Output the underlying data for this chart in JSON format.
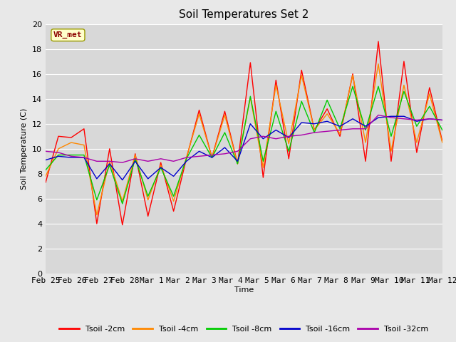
{
  "title": "Soil Temperatures Set 2",
  "xlabel": "Time",
  "ylabel": "Soil Temperature (C)",
  "ylim": [
    0,
    20
  ],
  "fig_bg_color": "#e8e8e8",
  "plot_bg_color": "#d8d8d8",
  "annotation_label": "VR_met",
  "annotation_color": "#8b0000",
  "annotation_bg": "#ffffcc",
  "annotation_edge": "#999900",
  "series_colors": {
    "Tsoil -2cm": "#ff0000",
    "Tsoil -4cm": "#ff8800",
    "Tsoil -8cm": "#00cc00",
    "Tsoil -16cm": "#0000cc",
    "Tsoil -32cm": "#aa00aa"
  },
  "x_tick_labels": [
    "Feb 25",
    "Feb 26",
    "Feb 27",
    "Feb 28",
    "Mar 1",
    "Mar 2",
    "Mar 3",
    "Mar 4",
    "Mar 5",
    "Mar 6",
    "Mar 7",
    "Mar 8",
    "Mar 9",
    "Mar 10",
    "Mar 11",
    "Mar 12"
  ],
  "tsoil_2cm": [
    7.3,
    11.0,
    10.9,
    11.6,
    4.0,
    10.0,
    3.9,
    9.6,
    4.6,
    8.9,
    5.0,
    9.2,
    13.1,
    9.3,
    13.0,
    8.8,
    16.9,
    7.7,
    15.5,
    9.2,
    16.3,
    11.5,
    13.2,
    11.0,
    16.0,
    9.0,
    18.6,
    9.0,
    17.0,
    9.7,
    14.9,
    10.6
  ],
  "tsoil_4cm": [
    7.8,
    10.0,
    10.5,
    10.3,
    4.7,
    9.0,
    5.8,
    9.5,
    5.9,
    8.7,
    5.8,
    9.3,
    12.8,
    9.3,
    12.7,
    8.8,
    14.1,
    8.5,
    15.1,
    10.4,
    15.9,
    11.5,
    12.8,
    11.2,
    15.9,
    10.5,
    16.8,
    9.8,
    15.1,
    10.5,
    14.4,
    10.5
  ],
  "tsoil_8cm": [
    8.3,
    9.5,
    9.5,
    9.5,
    5.9,
    8.7,
    5.6,
    9.2,
    6.2,
    8.5,
    6.2,
    9.2,
    11.1,
    9.3,
    11.3,
    8.8,
    14.2,
    9.0,
    13.0,
    9.8,
    13.8,
    11.3,
    13.9,
    11.6,
    15.0,
    11.5,
    15.0,
    11.0,
    14.6,
    11.8,
    13.4,
    11.5
  ],
  "tsoil_16cm": [
    9.1,
    9.4,
    9.3,
    9.3,
    7.6,
    8.8,
    7.5,
    9.0,
    7.6,
    8.5,
    7.8,
    9.0,
    9.8,
    9.3,
    10.1,
    9.0,
    12.0,
    10.8,
    11.5,
    10.9,
    12.1,
    12.0,
    12.2,
    11.8,
    12.4,
    11.8,
    12.5,
    12.6,
    12.6,
    12.2,
    12.4,
    12.3
  ],
  "tsoil_32cm": [
    9.8,
    9.7,
    9.4,
    9.3,
    9.0,
    9.0,
    8.9,
    9.2,
    9.0,
    9.2,
    9.0,
    9.3,
    9.4,
    9.5,
    9.6,
    9.8,
    10.8,
    11.0,
    10.8,
    11.0,
    11.1,
    11.3,
    11.4,
    11.5,
    11.6,
    11.6,
    12.7,
    12.5,
    12.4,
    12.3,
    12.4,
    12.3
  ]
}
